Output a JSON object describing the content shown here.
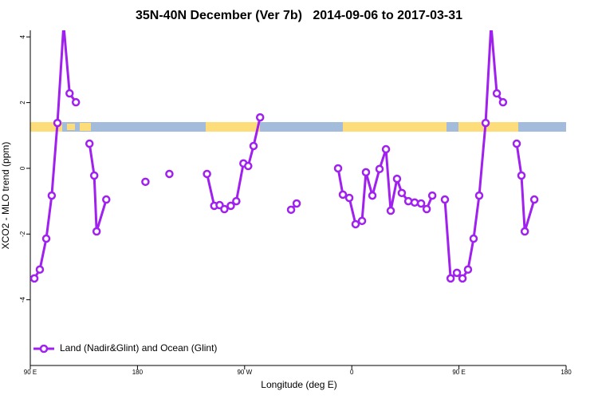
{
  "chart_data": {
    "type": "line",
    "title": "35N-40N December (Ver 7b)   2014-09-06 to 2017-03-31",
    "xlabel": "Longitude (deg E)",
    "ylabel": "XCO2 - MLO trend (ppm)",
    "xlim": [
      90,
      540
    ],
    "xticks": [
      {
        "value": 90,
        "label": "90 E"
      },
      {
        "value": 180,
        "label": "180"
      },
      {
        "value": 270,
        "label": "90 W"
      },
      {
        "value": 360,
        "label": "0"
      },
      {
        "value": 450,
        "label": "90 E"
      },
      {
        "value": 540,
        "label": "180"
      }
    ],
    "ylim": [
      -6,
      4.2
    ],
    "yticks": [
      4,
      2,
      0,
      -2,
      -4
    ],
    "legend": "bottom-left",
    "x": [
      93.4,
      98,
      103.4,
      108,
      112.8,
      118,
      123,
      128.3,
      null,
      139.7,
      143.7,
      145.7,
      153.8,
      null,
      186.7,
      null,
      206.8,
      null,
      238.4,
      244.5,
      249,
      253,
      258.4,
      263,
      269,
      273,
      277.5,
      283,
      null,
      309,
      313.7,
      null,
      348.5,
      352.5,
      357.9,
      363.2,
      368.6,
      371.9,
      377.3,
      383.3,
      388.7,
      392.7,
      398,
      402,
      407.5,
      412.8,
      418.2,
      422.9,
      427.6,
      null,
      438.2,
      443,
      448.3,
      453,
      457.6,
      462.3,
      467,
      472.4,
      477,
      481.8,
      487,
      null,
      498.5,
      502.5,
      505.3,
      513.3
    ],
    "series": [
      {
        "name": "Land (Nadir&Glint) and Ocean (Glint)",
        "color": "#a020f0",
        "values": [
          -3.35,
          -3.08,
          -2.14,
          -0.83,
          1.38,
          4.37,
          2.28,
          2.01,
          null,
          0.75,
          -0.22,
          -1.92,
          -0.95,
          null,
          -0.41,
          null,
          -0.17,
          null,
          -0.17,
          -1.14,
          -1.12,
          -1.24,
          -1.14,
          -1.0,
          0.15,
          0.07,
          0.68,
          1.55,
          null,
          -1.26,
          -1.07,
          null,
          0.0,
          -0.8,
          -0.9,
          -1.7,
          -1.6,
          -0.12,
          -0.83,
          -0.02,
          0.58,
          -1.29,
          -0.32,
          -0.75,
          -1.0,
          -1.04,
          -1.07,
          -1.24,
          -0.83,
          null,
          -0.95,
          -3.35,
          -3.18,
          -3.35,
          -3.08,
          -2.14,
          -0.83,
          1.38,
          4.37,
          2.28,
          2.01,
          null,
          0.75,
          -0.22,
          -1.92,
          -0.95
        ]
      }
    ]
  }
}
